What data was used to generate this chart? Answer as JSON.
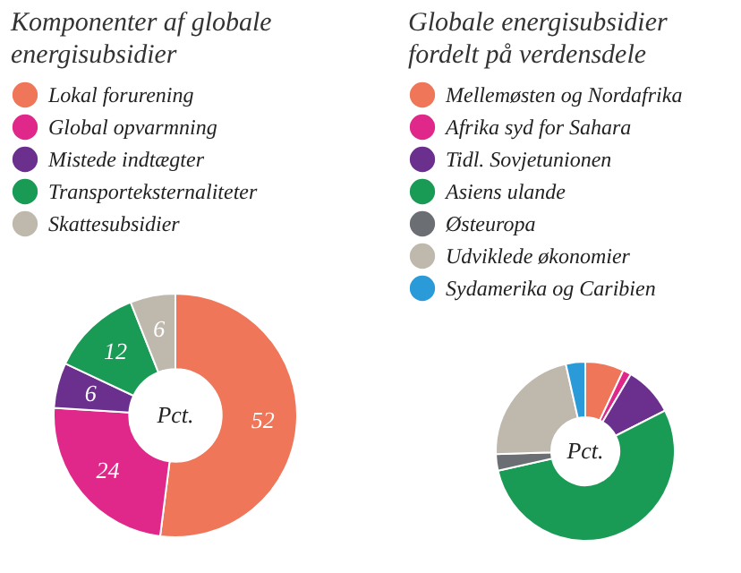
{
  "chart_data": [
    {
      "type": "donut",
      "title": "Komponenter af globale energisubsidier",
      "legend": "top",
      "data_labels": true,
      "annotations": [
        "Pct."
      ],
      "categories": [
        "Lokal forurening",
        "Global opvarmning",
        "Mistede indtægter",
        "Transporteksternaliteter",
        "Skattesubsidier"
      ],
      "values": [
        52,
        24,
        6,
        12,
        6
      ],
      "colors": [
        "#ef7658",
        "#e0288a",
        "#6b2f8e",
        "#1a9b55",
        "#bfb8ad"
      ]
    },
    {
      "type": "donut",
      "title": "Globale energisubsidier fordelt på verdensdele",
      "legend": "top",
      "annotations": [
        "Pct."
      ],
      "categories": [
        "Mellemøsten og Nordafrika",
        "Afrika syd for Sahara",
        "Tidl. Sovjetunionen",
        "Asiens ulande",
        "Østeuropa",
        "Udviklede økonomier",
        "Sydamerika og Caribien"
      ],
      "values": [
        7,
        1.5,
        9,
        54,
        3,
        22,
        3.5
      ],
      "colors": [
        "#ef7658",
        "#e0288a",
        "#6b2f8e",
        "#1a9b55",
        "#6b6e72",
        "#bfb8ad",
        "#2a9ad8"
      ]
    }
  ]
}
